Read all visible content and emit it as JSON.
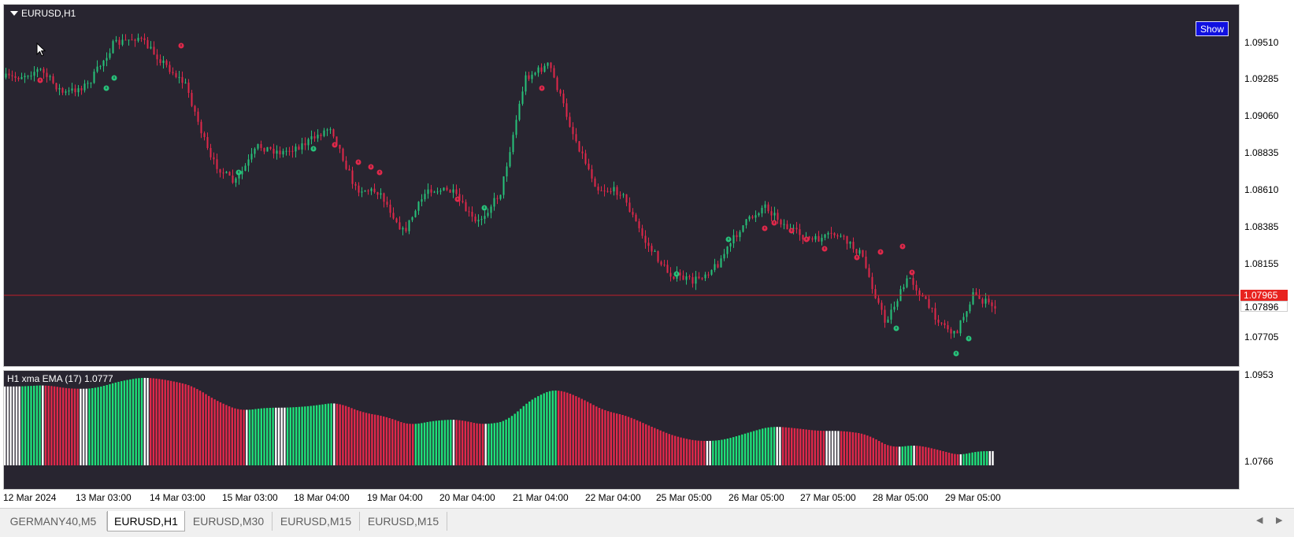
{
  "main_chart": {
    "symbol_title": "EURUSD,H1",
    "show_button_label": "Show",
    "colors": {
      "background": "#282530",
      "bull": "#27c27a",
      "bear": "#e0284a",
      "price_line": "#c0202a"
    },
    "price_axis_labels": [
      "1.09510",
      "1.09285",
      "1.09060",
      "1.08835",
      "1.08610",
      "1.08385",
      "1.08155",
      "1.07705"
    ],
    "ask_price_tag": "1.07965",
    "bid_price_tag": "1.07896"
  },
  "indicator": {
    "title": "H1 xma EMA (17) 1.0777",
    "axis_labels": [
      "1.0953",
      "1.0766"
    ],
    "colors": {
      "up": "#1ee07a",
      "down": "#e0284a",
      "flat": "#ffffff"
    }
  },
  "time_axis": {
    "labels": [
      "12 Mar 2024",
      "13 Mar 03:00",
      "14 Mar 03:00",
      "15 Mar 03:00",
      "18 Mar 04:00",
      "19 Mar 04:00",
      "20 Mar 04:00",
      "21 Mar 04:00",
      "22 Mar 04:00",
      "25 Mar 05:00",
      "26 Mar 05:00",
      "27 Mar 05:00",
      "28 Mar 05:00",
      "29 Mar 05:00"
    ]
  },
  "tabs": [
    {
      "label": "GERMANY40,M5",
      "active": false
    },
    {
      "label": "EURUSD,H1",
      "active": true
    },
    {
      "label": "EURUSD,M30",
      "active": false
    },
    {
      "label": "EURUSD,M15",
      "active": false
    },
    {
      "label": "EURUSD,M15",
      "active": false
    }
  ],
  "icons": {
    "scroll_left": "scroll-left-icon",
    "scroll_right": "scroll-right-icon",
    "cursor": "mouse-pointer-icon"
  },
  "chart_data": {
    "type": "line",
    "series": [
      {
        "name": "EURUSD,H1",
        "waypoints": [
          [
            "12 Mar 2024",
            1.093
          ],
          [
            "12 Mar 2024",
            1.0935
          ],
          [
            "12 Mar 2024",
            1.092
          ],
          [
            "13 Mar 03:00",
            1.0926
          ],
          [
            "13 Mar 03:00",
            1.095
          ],
          [
            "13 Mar 03:00",
            1.0955
          ],
          [
            "14 Mar 03:00",
            1.094
          ],
          [
            "14 Mar 03:00",
            1.0925
          ],
          [
            "14 Mar 03:00",
            1.088
          ],
          [
            "15 Mar 03:00",
            1.0865
          ],
          [
            "15 Mar 03:00",
            1.0888
          ],
          [
            "15 Mar 03:00",
            1.0884
          ],
          [
            "18 Mar 04:00",
            1.089
          ],
          [
            "18 Mar 04:00",
            1.09
          ],
          [
            "18 Mar 04:00",
            1.0862
          ],
          [
            "19 Mar 04:00",
            1.086
          ],
          [
            "19 Mar 04:00",
            1.0835
          ],
          [
            "19 Mar 04:00",
            1.0862
          ],
          [
            "20 Mar 04:00",
            1.086
          ],
          [
            "20 Mar 04:00",
            1.084
          ],
          [
            "20 Mar 04:00",
            1.086
          ],
          [
            "21 Mar 04:00",
            1.093
          ],
          [
            "21 Mar 04:00",
            1.0938
          ],
          [
            "21 Mar 04:00",
            1.0895
          ],
          [
            "22 Mar 04:00",
            1.0862
          ],
          [
            "22 Mar 04:00",
            1.086
          ],
          [
            "22 Mar 04:00",
            1.083
          ],
          [
            "25 Mar 05:00",
            1.081
          ],
          [
            "25 Mar 05:00",
            1.0805
          ],
          [
            "25 Mar 05:00",
            1.0815
          ],
          [
            "26 Mar 05:00",
            1.0838
          ],
          [
            "26 Mar 05:00",
            1.0852
          ],
          [
            "26 Mar 05:00",
            1.0837
          ],
          [
            "27 Mar 05:00",
            1.083
          ],
          [
            "27 Mar 05:00",
            1.0834
          ],
          [
            "27 Mar 05:00",
            1.0822
          ],
          [
            "28 Mar 05:00",
            1.078
          ],
          [
            "28 Mar 05:00",
            1.0808
          ],
          [
            "28 Mar 05:00",
            1.0785
          ],
          [
            "29 Mar 05:00",
            1.0772
          ],
          [
            "29 Mar 05:00",
            1.0797
          ],
          [
            "29 Mar 05:00",
            1.079
          ]
        ]
      }
    ]
  }
}
